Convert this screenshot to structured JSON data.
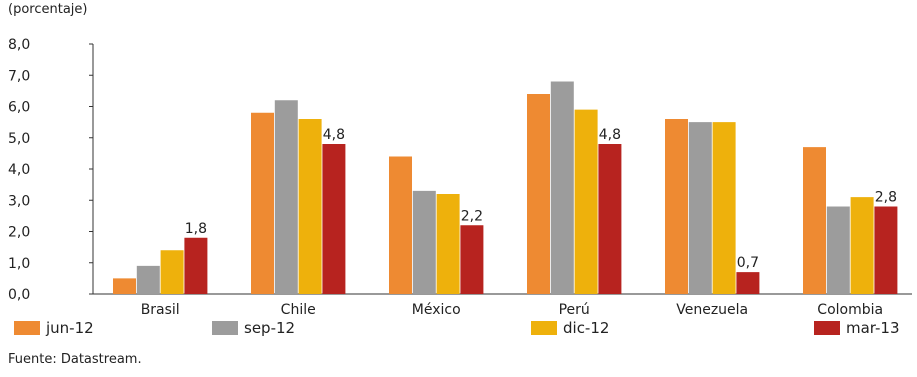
{
  "unit_label": "(porcentaje)",
  "source": "Fuente: Datastream.",
  "chart_data": {
    "type": "bar",
    "categories": [
      "Brasil",
      "Chile",
      "México",
      "Perú",
      "Venezuela",
      "Colombia"
    ],
    "series": [
      {
        "name": "jun-12",
        "color": "#ee8a32",
        "values": [
          0.5,
          5.8,
          4.4,
          6.4,
          5.6,
          4.7
        ]
      },
      {
        "name": "sep-12",
        "color": "#9c9c9c",
        "values": [
          0.9,
          6.2,
          3.3,
          6.8,
          5.5,
          2.8
        ]
      },
      {
        "name": "dic-12",
        "color": "#eeb10c",
        "values": [
          1.4,
          5.6,
          3.2,
          5.9,
          5.5,
          3.1
        ]
      },
      {
        "name": "mar-13",
        "color": "#b7231f",
        "values": [
          1.8,
          4.8,
          2.2,
          4.8,
          0.7,
          2.8
        ]
      }
    ],
    "data_labels": [
      "1,8",
      "4,8",
      "2,2",
      "4,8",
      "0,7",
      "2,8"
    ],
    "y_ticks": [
      "0,0",
      "1,0",
      "2,0",
      "3,0",
      "4,0",
      "5,0",
      "6,0",
      "7,0",
      "8,0"
    ],
    "ylim": [
      0,
      8
    ],
    "legend": "bottom",
    "grid": false
  }
}
